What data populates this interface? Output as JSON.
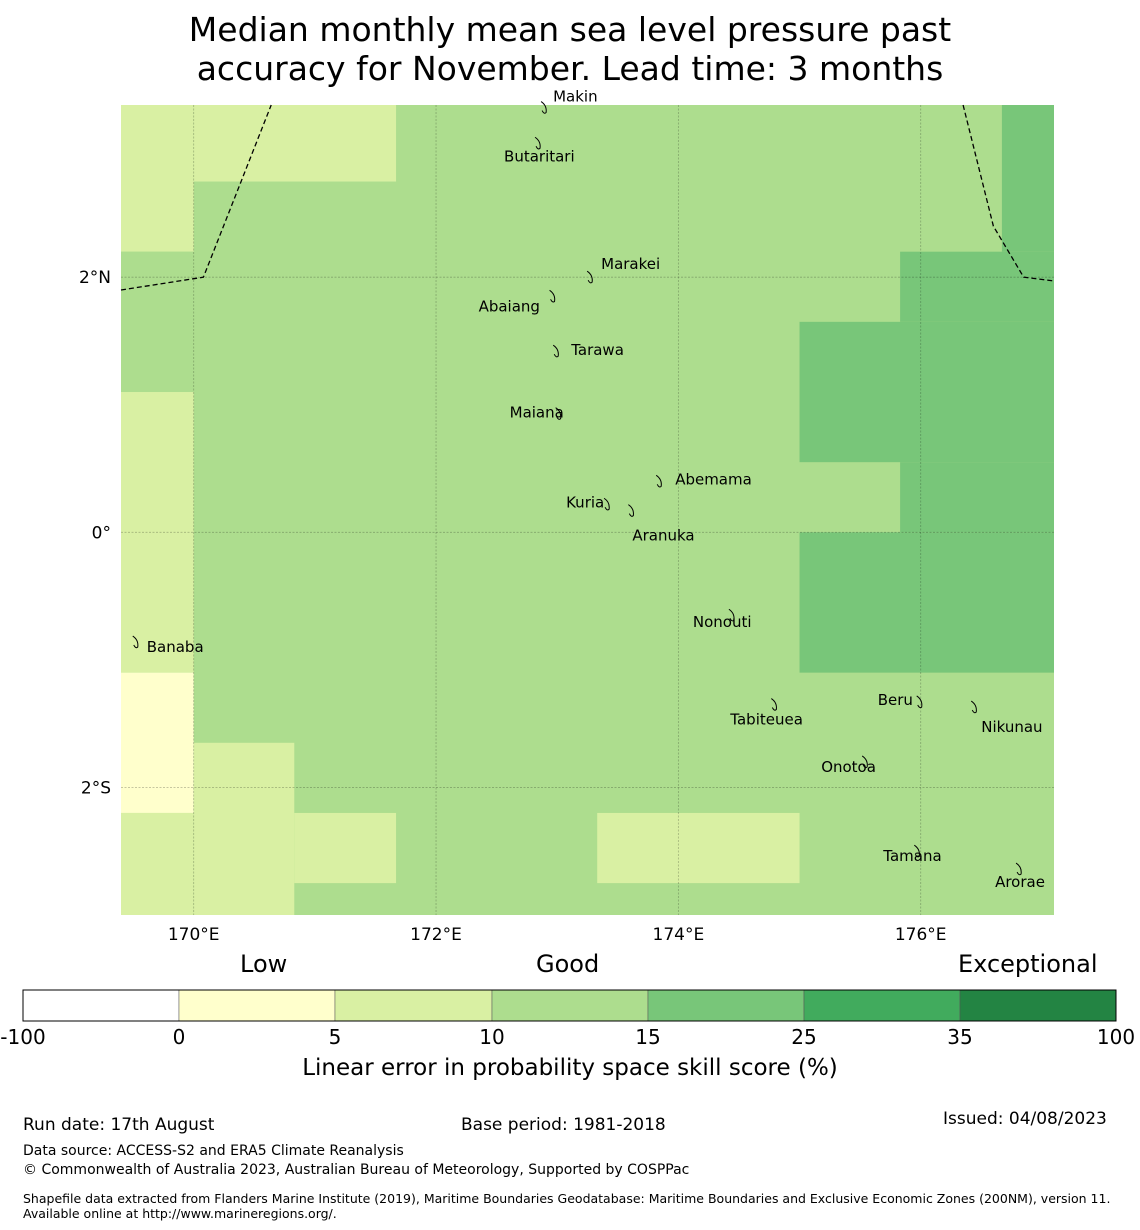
{
  "title_line1": "Median monthly mean sea level pressure past",
  "title_line2": "accuracy for November. Lead time: 3 months",
  "map": {
    "lon_range": [
      169.4,
      177.1
    ],
    "lat_range": [
      -3.0,
      3.35
    ],
    "lon_ticks": [
      {
        "value": 170,
        "label": "170°E"
      },
      {
        "value": 172,
        "label": "172°E"
      },
      {
        "value": 174,
        "label": "174°E"
      },
      {
        "value": 176,
        "label": "176°E"
      }
    ],
    "lat_ticks": [
      {
        "value": 2,
        "label": "2°N"
      },
      {
        "value": 0,
        "label": "0°"
      },
      {
        "value": -2,
        "label": "2°S"
      }
    ],
    "skill_cells_note": "grid cells coloured by skill category (0-5, 5-10, 10-15, 15-25)",
    "cells": [
      {
        "lon0": 169.4,
        "lon1": 170.0,
        "lat0": 2.2,
        "lat1": 3.35,
        "cat": 2
      },
      {
        "lon0": 170.0,
        "lon1": 171.67,
        "lat0": 2.75,
        "lat1": 3.35,
        "cat": 2
      },
      {
        "lon0": 169.4,
        "lon1": 170.0,
        "lat0": 1.1,
        "lat1": 2.2,
        "cat": 3
      },
      {
        "lon0": 169.4,
        "lon1": 170.0,
        "lat0": -1.1,
        "lat1": 1.1,
        "cat": 2
      },
      {
        "lon0": 169.4,
        "lon1": 170.0,
        "lat0": -2.2,
        "lat1": -1.1,
        "cat": 1
      },
      {
        "lon0": 169.4,
        "lon1": 170.0,
        "lat0": -3.0,
        "lat1": -2.2,
        "cat": 2
      },
      {
        "lon0": 170.0,
        "lon1": 170.83,
        "lat0": -3.0,
        "lat1": -1.65,
        "cat": 2
      },
      {
        "lon0": 170.83,
        "lon1": 171.67,
        "lat0": -2.75,
        "lat1": -2.2,
        "cat": 2
      },
      {
        "lon0": 173.33,
        "lon1": 175.0,
        "lat0": -2.75,
        "lat1": -2.2,
        "cat": 2
      },
      {
        "lon0": 176.67,
        "lon1": 177.1,
        "lat0": 2.2,
        "lat1": 3.35,
        "cat": 4
      },
      {
        "lon0": 175.83,
        "lon1": 177.1,
        "lat0": 1.65,
        "lat1": 2.2,
        "cat": 4
      },
      {
        "lon0": 175.0,
        "lon1": 177.1,
        "lat0": 0.55,
        "lat1": 1.65,
        "cat": 4
      },
      {
        "lon0": 175.83,
        "lon1": 177.1,
        "lat0": 0.0,
        "lat1": 0.55,
        "cat": 4
      },
      {
        "lon0": 175.0,
        "lon1": 177.1,
        "lat0": -1.1,
        "lat1": 0.0,
        "cat": 4
      }
    ],
    "islands": [
      {
        "name": "Makin",
        "lon": 172.9,
        "lat": 3.33
      },
      {
        "name": "Butaritari",
        "lon": 172.85,
        "lat": 3.05
      },
      {
        "name": "Marakei",
        "lon": 173.28,
        "lat": 2.0
      },
      {
        "name": "Abaiang",
        "lon": 172.97,
        "lat": 1.85
      },
      {
        "name": "Tarawa",
        "lon": 173.0,
        "lat": 1.42
      },
      {
        "name": "Maiana",
        "lon": 173.02,
        "lat": 0.93
      },
      {
        "name": "Abemama",
        "lon": 173.85,
        "lat": 0.4
      },
      {
        "name": "Kuria",
        "lon": 173.42,
        "lat": 0.22
      },
      {
        "name": "Aranuka",
        "lon": 173.62,
        "lat": 0.17
      },
      {
        "name": "Banaba",
        "lon": 169.53,
        "lat": -0.86
      },
      {
        "name": "Nonouti",
        "lon": 174.45,
        "lat": -0.65
      },
      {
        "name": "Tabiteuea",
        "lon": 174.8,
        "lat": -1.35
      },
      {
        "name": "Beru",
        "lon": 176.0,
        "lat": -1.33
      },
      {
        "name": "Nikunau",
        "lon": 176.45,
        "lat": -1.37
      },
      {
        "name": "Onotoa",
        "lon": 175.55,
        "lat": -1.8
      },
      {
        "name": "Tamana",
        "lon": 175.98,
        "lat": -2.5
      },
      {
        "name": "Arorae",
        "lon": 176.82,
        "lat": -2.64
      }
    ],
    "eez_boundary_left": [
      [
        169.4,
        1.9
      ],
      [
        170.08,
        2.0
      ],
      [
        170.64,
        3.35
      ]
    ],
    "eez_boundary_right": [
      [
        176.35,
        3.35
      ],
      [
        176.6,
        2.4
      ],
      [
        176.85,
        2.0
      ],
      [
        177.1,
        1.97
      ]
    ]
  },
  "colors": {
    "cat0": "#ffffff",
    "cat1": "#ffffcc",
    "cat2": "#d9f0a3",
    "cat3": "#addd8e",
    "cat4": "#78c679",
    "cat5": "#41ab5d",
    "cat6": "#238443"
  },
  "colorbar": {
    "categories": {
      "low": "Low",
      "good": "Good",
      "exceptional": "Exceptional"
    },
    "ticks": [
      "-100",
      "0",
      "5",
      "10",
      "15",
      "25",
      "35",
      "100"
    ],
    "title": "Linear error in probability space skill score (%)"
  },
  "footer": {
    "run_date": "Run date: 17th August",
    "base_period": "Base period: 1981-2018",
    "issued": "Issued: 04/08/2023",
    "data_source": "Data source: ACCESS-S2 and ERA5 Climate Reanalysis",
    "copyright": "© Commonwealth of Australia 2023, Australian Bureau of Meteorology, Supported by COSPPac",
    "shapefile": "Shapefile data extracted from Flanders Marine Institute (2019), Maritime Boundaries Geodatabase: Maritime Boundaries and Exclusive Economic Zones (200NM), version 11. Available online at http://www.marineregions.org/."
  }
}
